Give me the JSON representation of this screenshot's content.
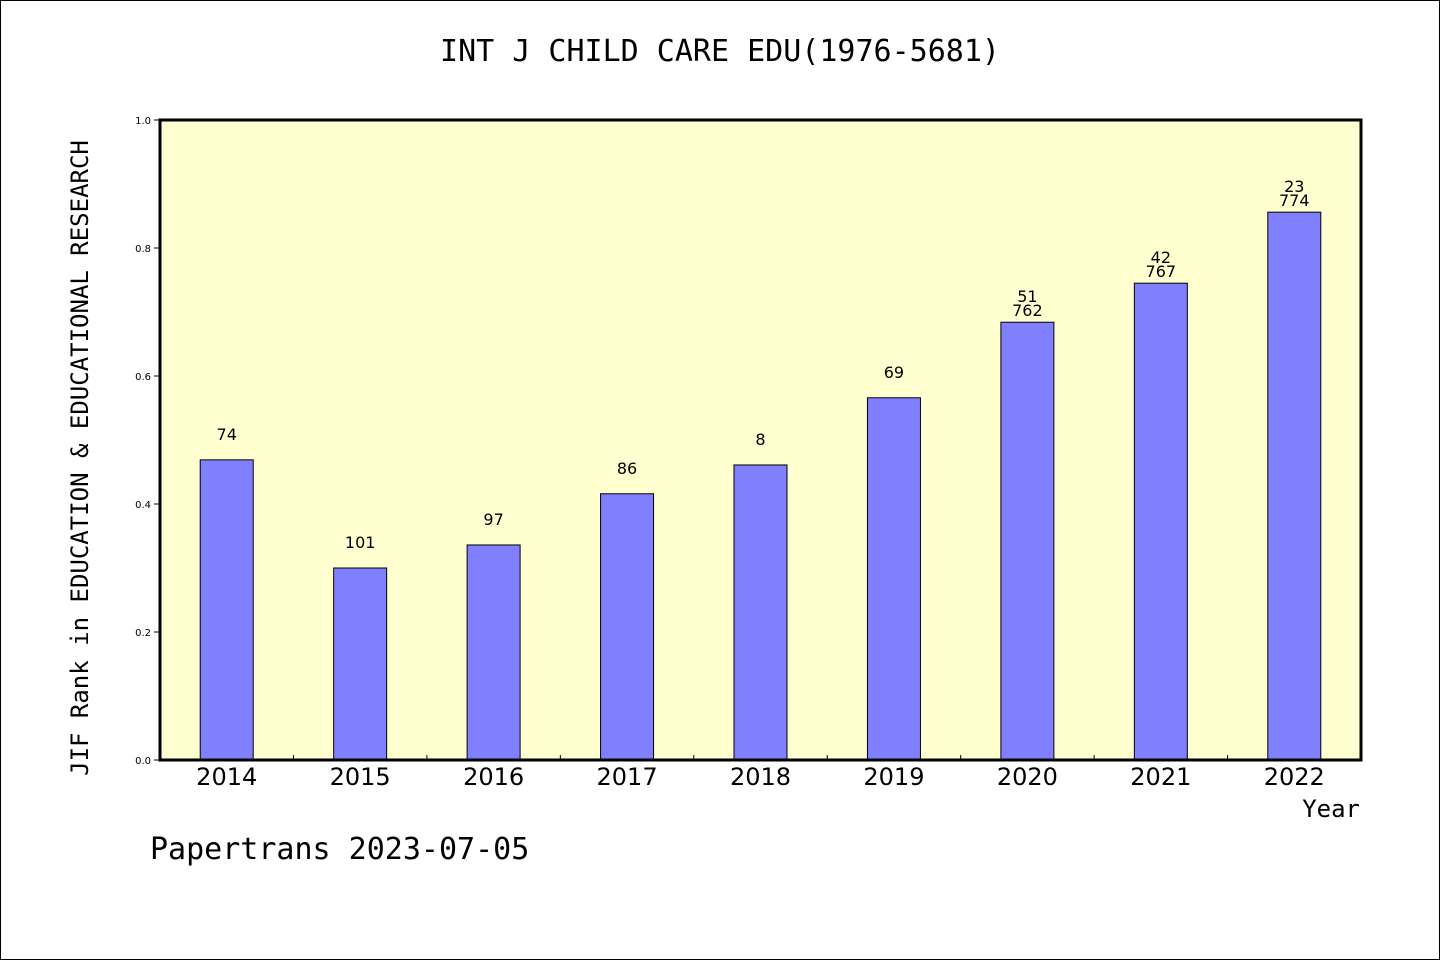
{
  "chart_data": {
    "type": "bar",
    "title": "INT J CHILD CARE EDU(1976-5681)",
    "xlabel": "Year",
    "ylabel": "JIF Rank in EDUCATION & EDUCATIONAL RESEARCH",
    "ylim": [
      0,
      1.0
    ],
    "yticks": [
      "0.0",
      "0.2",
      "0.4",
      "0.6",
      "0.8",
      "1.0"
    ],
    "categories": [
      "2014",
      "2015",
      "2016",
      "2017",
      "2018",
      "2019",
      "2020",
      "2021",
      "2022"
    ],
    "values": [
      0.469,
      0.3,
      0.336,
      0.416,
      0.461,
      0.566,
      0.684,
      0.745,
      0.856
    ],
    "bar_labels": [
      [
        "74"
      ],
      [
        "101"
      ],
      [
        "97"
      ],
      [
        "86"
      ],
      [
        "8"
      ],
      [
        "69"
      ],
      [
        "51",
        "762"
      ],
      [
        "42",
        "767"
      ],
      [
        "23",
        "774"
      ]
    ],
    "grid": false,
    "legend": "none",
    "colors": {
      "bar": "#8080ff",
      "plot_background": "#ffffd0",
      "axis": "#000000"
    }
  },
  "footer": {
    "text": "Papertrans 2023-07-05"
  }
}
